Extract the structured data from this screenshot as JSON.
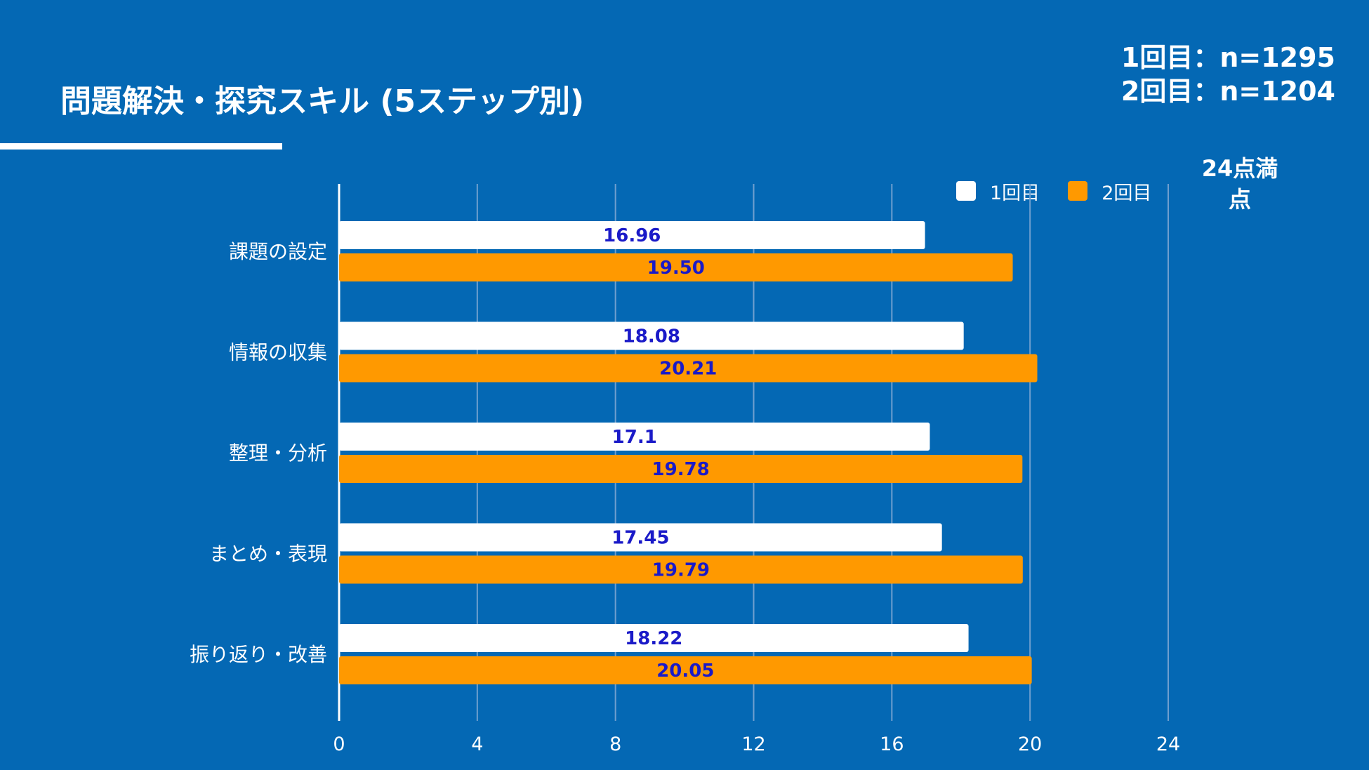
{
  "header": {
    "title": "問題解決・探究スキル (5ステップ別)",
    "sample_1": "1回目：n=1295",
    "sample_2": "2回目：n=1204"
  },
  "max_note": {
    "line1": "24点満",
    "line2": "点"
  },
  "colors": {
    "background": "#0468b4",
    "series1": "#ffffff",
    "series2": "#ff9900",
    "data_label": "#1a1ac8",
    "gridline": "#6f9fcf"
  },
  "chart_data": {
    "type": "bar",
    "orientation": "horizontal",
    "categories": [
      "課題の設定",
      "情報の収集",
      "整理・分析",
      "まとめ・表現",
      "振り返り・改善"
    ],
    "series": [
      {
        "name": "1回目",
        "values": [
          16.96,
          18.08,
          17.1,
          17.45,
          18.22
        ],
        "labels": [
          "16.96",
          "18.08",
          "17.1",
          "17.45",
          "18.22"
        ]
      },
      {
        "name": "2回目",
        "values": [
          19.5,
          20.21,
          19.78,
          19.79,
          20.05
        ],
        "labels": [
          "19.50",
          "20.21",
          "19.78",
          "19.79",
          "20.05"
        ]
      }
    ],
    "xlim": [
      0,
      24
    ],
    "xticks": [
      0,
      4,
      8,
      12,
      16,
      20,
      24
    ],
    "grid": true,
    "legend_position": "top-right"
  }
}
